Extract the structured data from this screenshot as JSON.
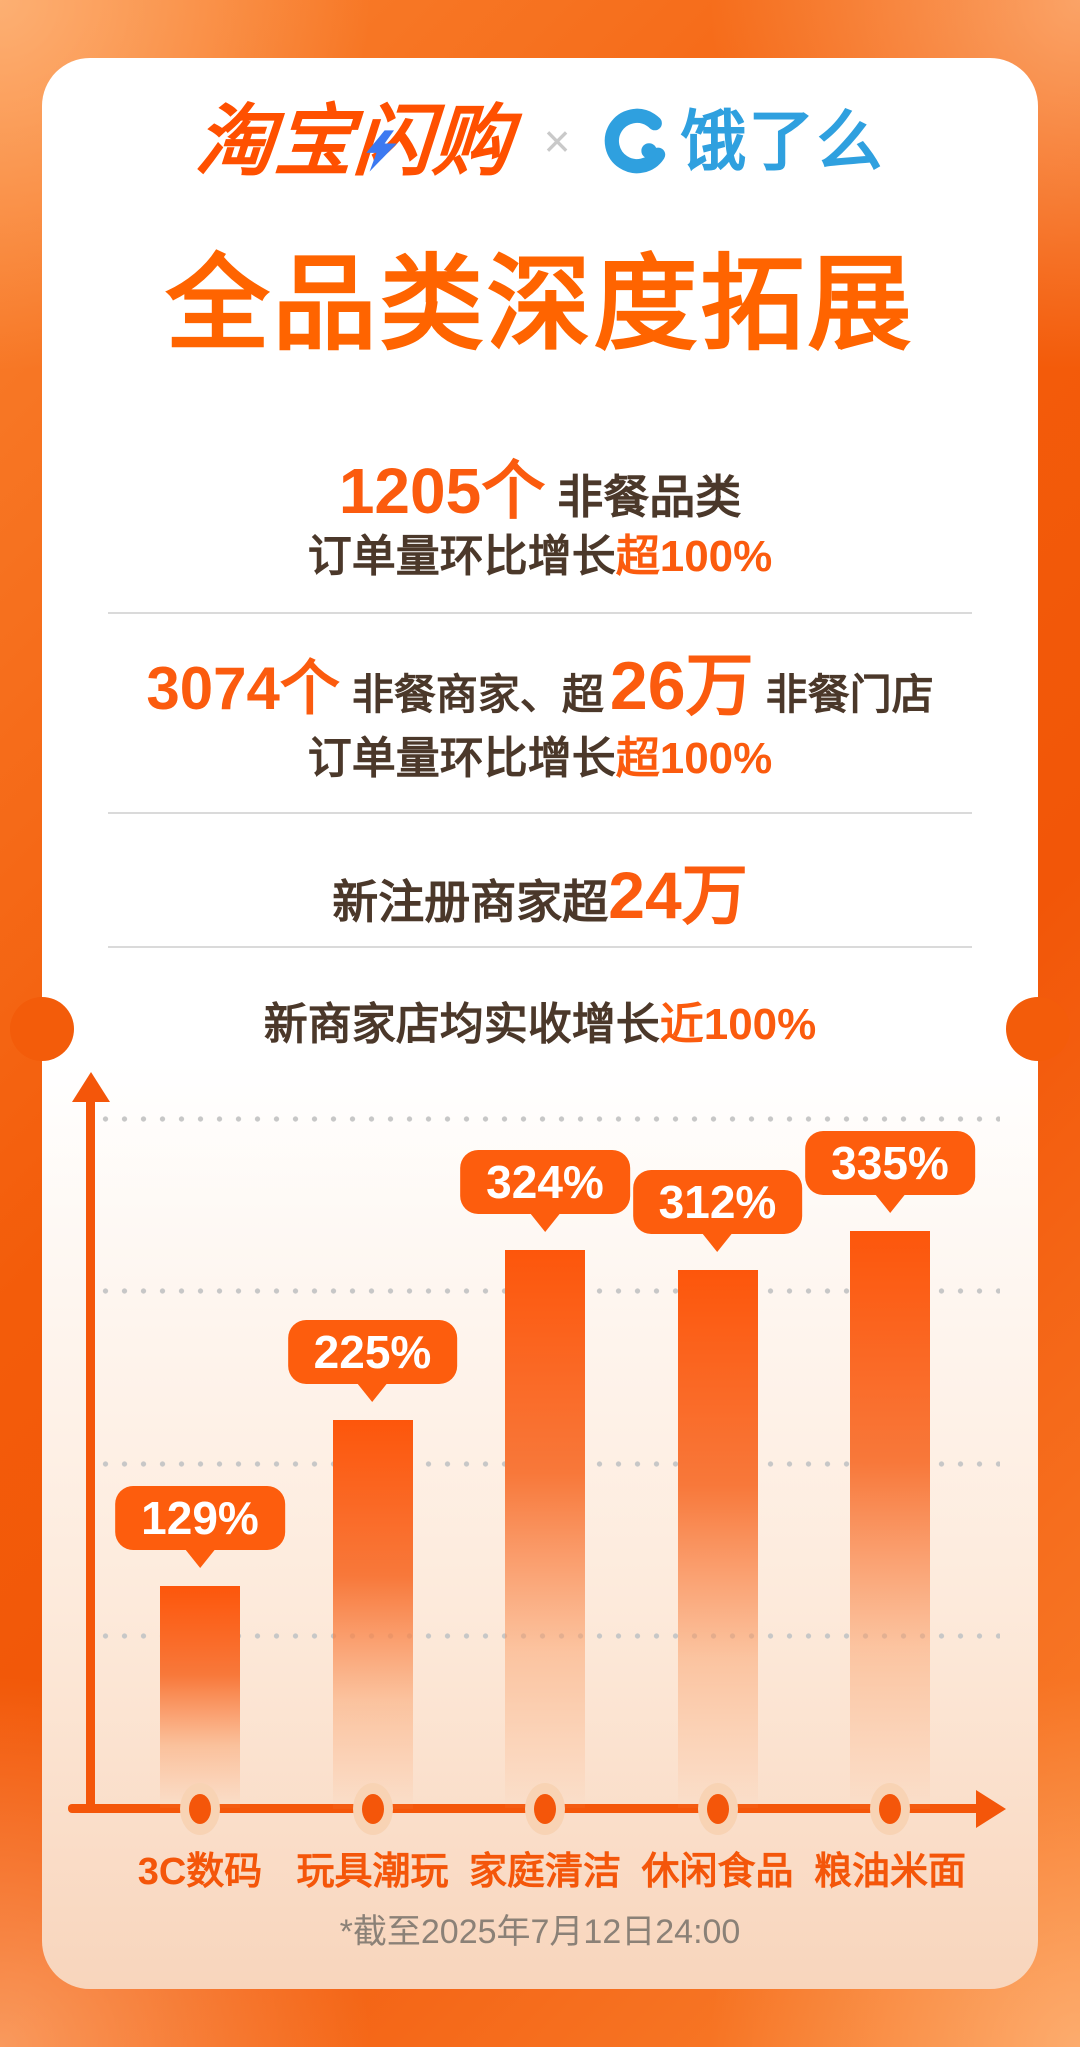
{
  "header": {
    "brand_left": "淘宝闪购",
    "separator": "×",
    "brand_right": "饿了么",
    "icons": {
      "ele_mark": "ele-logo-e-icon",
      "bolt": "lightning-bolt-icon"
    }
  },
  "title": "全品类深度拓展",
  "stats": {
    "s1": {
      "big": "1205个",
      "rest": "非餐品类",
      "line2_dark": "订单量环比增长",
      "line2_orange": "超100%"
    },
    "s2": {
      "big1": "3074个",
      "mid": "非餐商家、超",
      "big2": "26万",
      "tail": "非餐门店",
      "line2_dark": "订单量环比增长",
      "line2_orange": "超100%"
    },
    "s3": {
      "dark": "新注册商家超",
      "big": "24万"
    },
    "s4": {
      "dark": "新商家店均实收增长",
      "orange": "近100%"
    }
  },
  "chart_data": {
    "type": "bar",
    "categories": [
      "3C数码",
      "玩具潮玩",
      "家庭清洁",
      "休闲食品",
      "粮油米面"
    ],
    "values": [
      129,
      225,
      324,
      312,
      335
    ],
    "labels": [
      "129%",
      "225%",
      "324%",
      "312%",
      "335%"
    ],
    "title": "",
    "xlabel": "",
    "ylabel": "",
    "ylim": [
      0,
      400
    ],
    "gridlines": [
      100,
      200,
      300,
      400
    ],
    "grid": "dotted-horizontal",
    "legend": "none",
    "value_suffix": "%"
  },
  "footnote": "*截至2025年7月12日24:00",
  "colors": {
    "accent_orange": "#fb5b0e",
    "title_orange": "#ff6400",
    "brand_orange": "#ff5000",
    "ele_blue": "#2fa0df",
    "bolt_blue": "#3c79f1",
    "dark_text": "#4b382a",
    "footnote_gray": "#8b8177",
    "divider_gray": "#dadada",
    "grid_dot_gray": "#c7c7c7",
    "bubble_orange": "#fd5d0d",
    "card_peach": "#f8d5bc",
    "background_orange": "#f35c0a"
  }
}
